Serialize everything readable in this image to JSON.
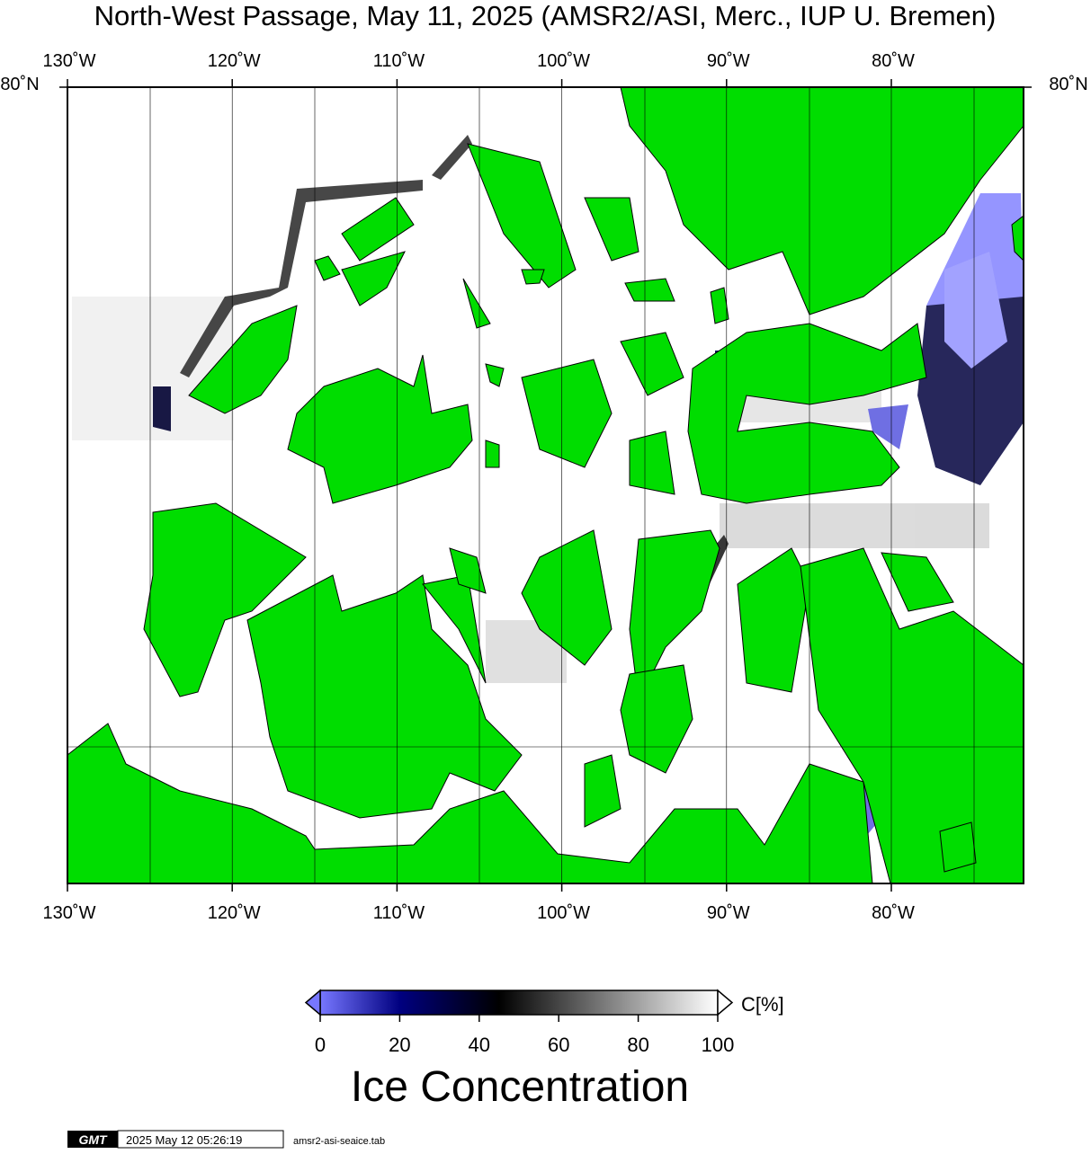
{
  "map": {
    "title": "North-West Passage, May 11, 2025 (AMSR2/ASI, Merc., IUP U. Bremen)",
    "lon_ticks": [
      {
        "value": -130,
        "label": "130˚W"
      },
      {
        "value": -120,
        "label": "120˚W"
      },
      {
        "value": -110,
        "label": "110˚W"
      },
      {
        "value": -100,
        "label": "100˚W"
      },
      {
        "value": -90,
        "label": "90˚W"
      },
      {
        "value": -80,
        "label": "80˚W"
      }
    ],
    "lat_label": "80˚N"
  },
  "colorbar": {
    "unit": "C[%]",
    "ticks": [
      0,
      20,
      40,
      60,
      80,
      100
    ],
    "label": "Ice Concentration"
  },
  "footer": {
    "logo": "GMT",
    "timestamp": "2025 May 12 05:26:19",
    "source": "amsr2-asi-seaice.tab"
  }
}
